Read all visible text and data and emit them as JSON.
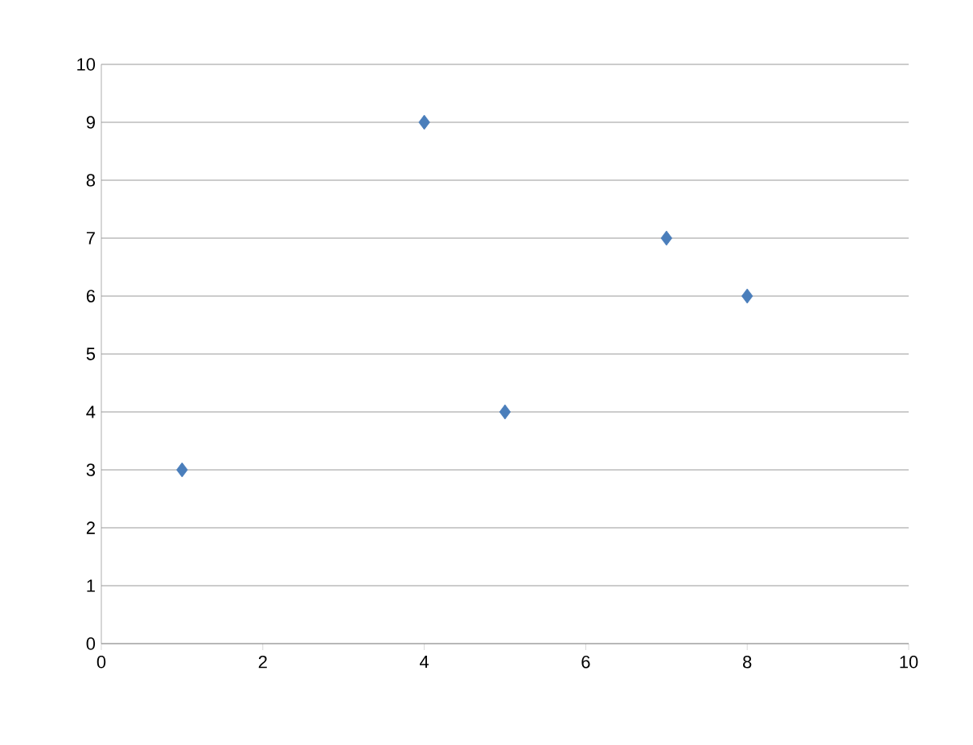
{
  "chart_data": {
    "type": "scatter",
    "x": [
      1,
      4,
      5,
      7,
      8
    ],
    "values": [
      3,
      9,
      4,
      7,
      6
    ],
    "color": "#4a7ebb",
    "marker": "diamond",
    "xlim": [
      0,
      10
    ],
    "xticks": [
      0,
      2,
      4,
      6,
      8,
      10
    ],
    "ylim": [
      0,
      10
    ],
    "yticks": [
      0,
      1,
      2,
      3,
      4,
      5,
      6,
      7,
      8,
      9,
      10
    ],
    "grid": "y"
  }
}
